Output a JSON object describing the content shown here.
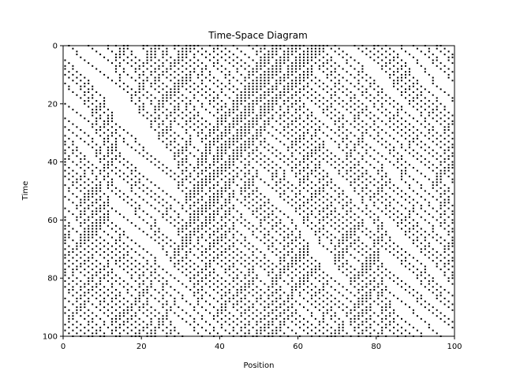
{
  "chart_data": {
    "type": "scatter",
    "title": "Time-Space Diagram",
    "xlabel": "Position",
    "ylabel": "Time",
    "xlim": [
      0,
      100
    ],
    "ylim": [
      100,
      0
    ],
    "y_axis_inverted": true,
    "xticks": [
      "0",
      "20",
      "40",
      "60",
      "80",
      "100"
    ],
    "yticks": [
      "0",
      "20",
      "40",
      "60",
      "80",
      "100"
    ],
    "grid": false,
    "legend": "none",
    "marker_color": "#000000",
    "description_values": {
      "x_range": [
        0,
        100
      ],
      "t_range": [
        0,
        100
      ],
      "n_sites": 100,
      "n_steps": 100
    }
  }
}
